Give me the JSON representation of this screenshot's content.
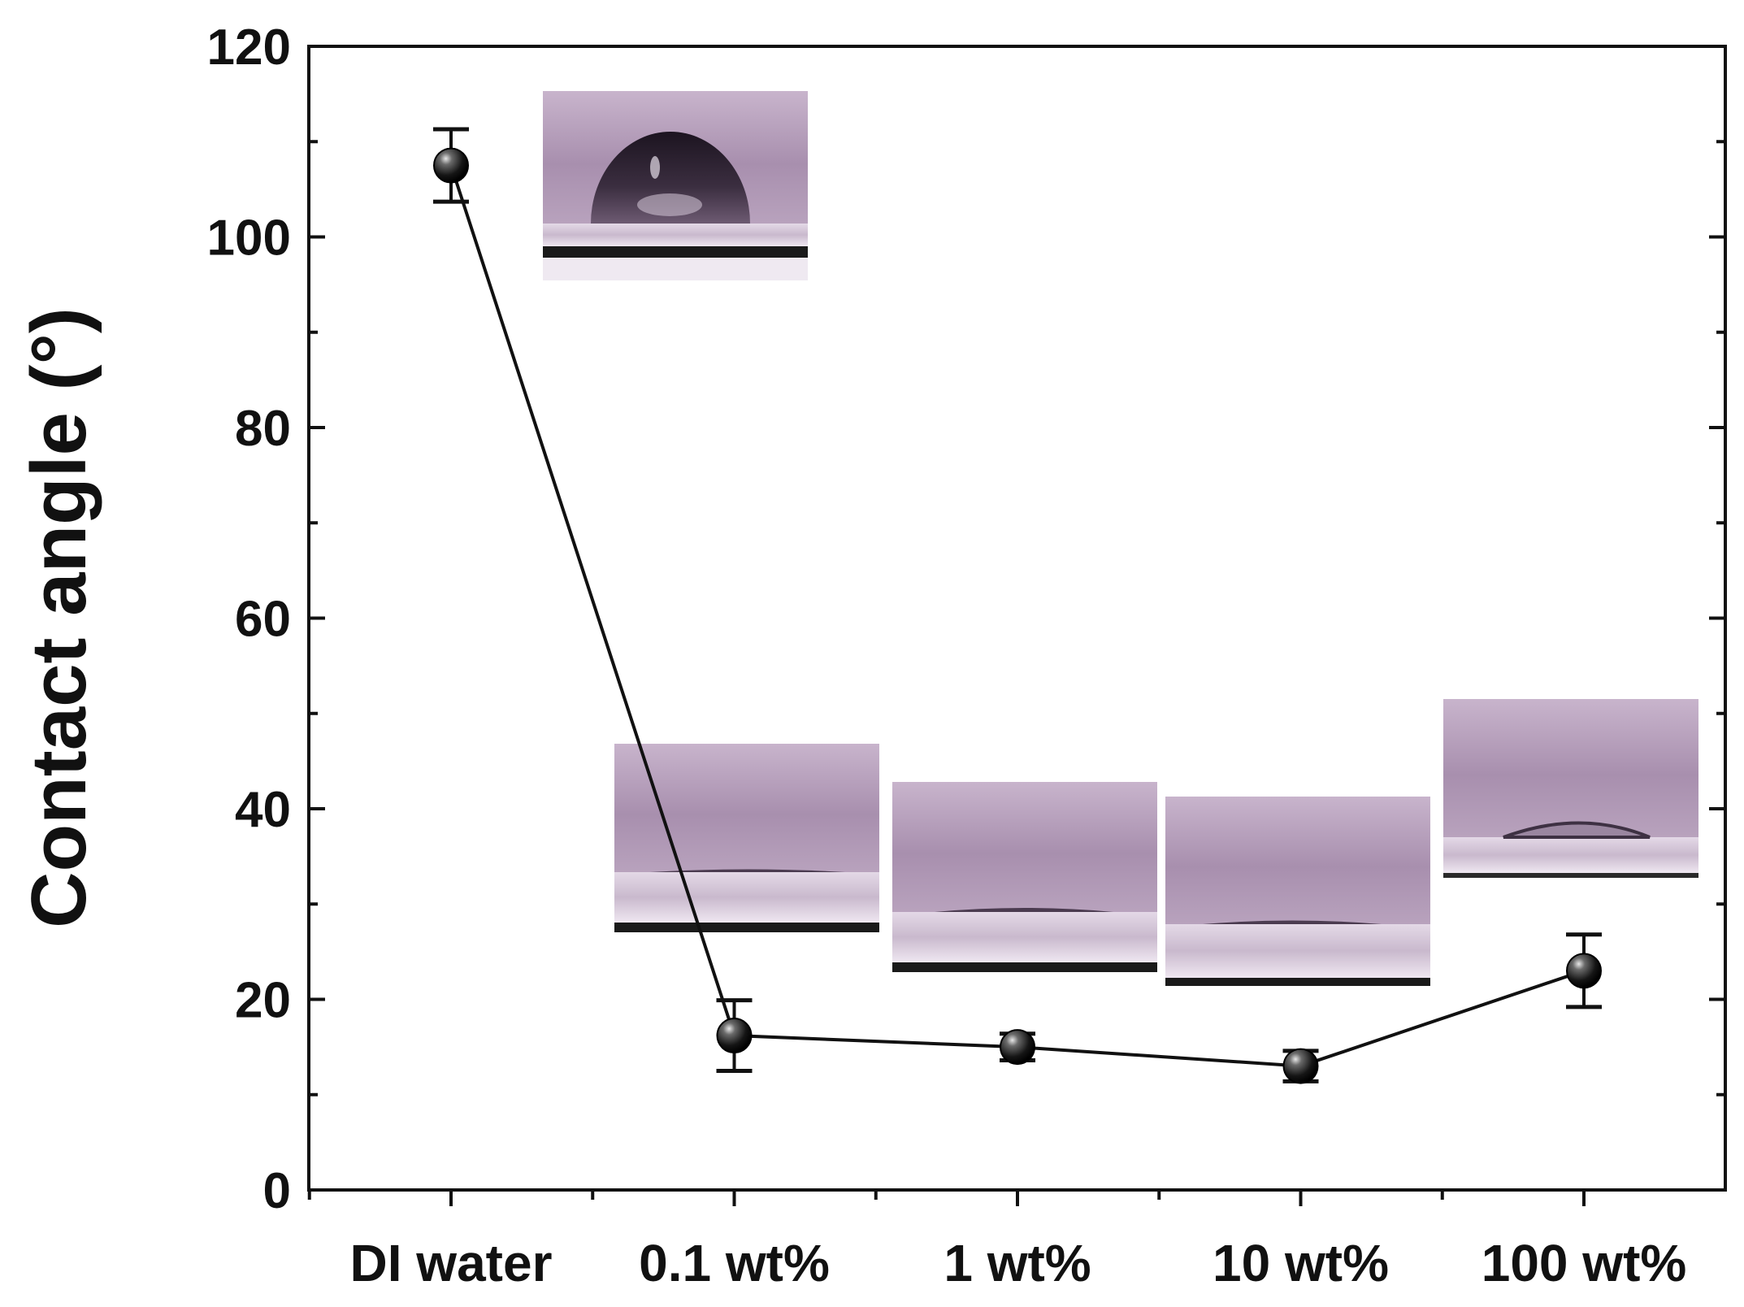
{
  "chart_data": {
    "type": "line",
    "title": "",
    "xlabel": "",
    "ylabel": "Contact angle (°)",
    "categories": [
      "DI water",
      "0.1 wt%",
      "1 wt%",
      "10 wt%",
      "100 wt%"
    ],
    "series": [
      {
        "name": "Contact angle",
        "values": [
          107.5,
          16.2,
          15.0,
          13.0,
          23.0
        ],
        "errors": [
          3.8,
          3.7,
          1.4,
          1.6,
          3.8
        ]
      }
    ],
    "ylim": [
      0,
      120
    ],
    "yticks": [
      0,
      20,
      40,
      60,
      80,
      100,
      120
    ],
    "grid": false,
    "legend": "none",
    "insets": [
      "droplet-photo-di-water",
      "droplet-photo-0.1wt",
      "droplet-photo-1wt",
      "droplet-photo-10wt",
      "droplet-photo-100wt"
    ]
  }
}
